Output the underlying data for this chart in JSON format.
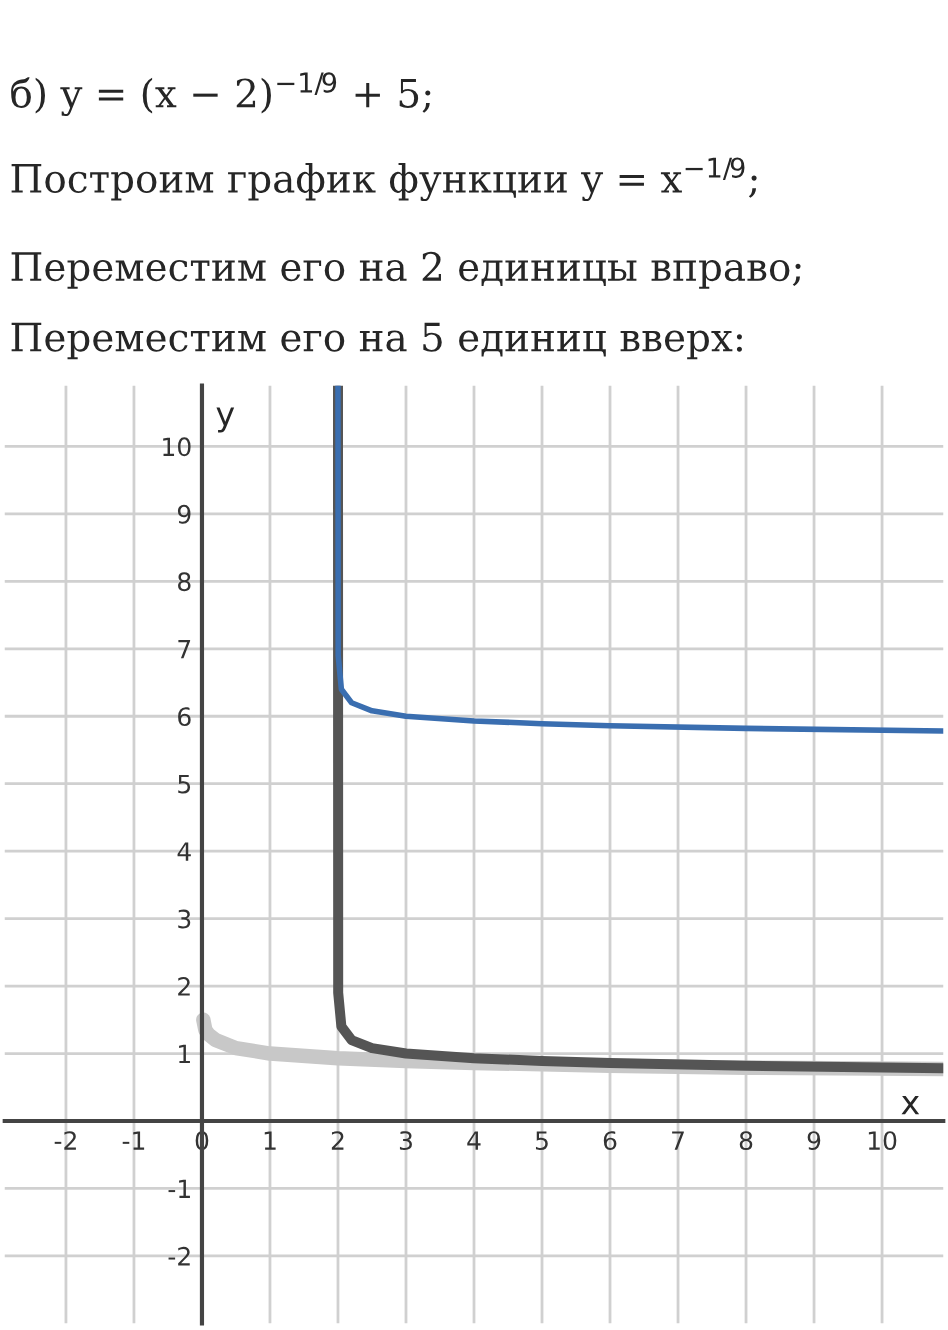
{
  "chart_data": {
    "type": "line",
    "title": "б) y = (x − 2)$^{−1/9}$ + 5;",
    "annotations": [
      "Построим график функции y = x$^{−1/9}$;",
      "Переместим его на 2 единицы вправо;",
      "Переместим его на 5 единиц вверх:"
    ],
    "xlabel": "x",
    "ylabel": "y",
    "series": [
      {
        "color": "#c8c8c8",
        "x": [
          0.02,
          0.05,
          0.1,
          0.2,
          0.5,
          1,
          2,
          3,
          4,
          6,
          8,
          10.9
        ],
        "values": [
          1.5,
          1.35,
          1.28,
          1.2,
          1.08,
          1.0,
          0.93,
          0.89,
          0.86,
          0.82,
          0.79,
          0.77
        ]
      },
      {
        "color": "#555555",
        "x": [
          2,
          2.003,
          2.05,
          2.2,
          2.5,
          3,
          4,
          5,
          6,
          8,
          10.9
        ],
        "values": [
          10.9,
          1.9,
          1.4,
          1.2,
          1.08,
          1.0,
          0.93,
          0.89,
          0.86,
          0.82,
          0.78
        ]
      },
      {
        "color": "#3a6eb0",
        "x": [
          2,
          2.003,
          2.05,
          2.2,
          2.5,
          3,
          4,
          5,
          6,
          8,
          10.9
        ],
        "values": [
          10.9,
          6.9,
          6.4,
          6.2,
          6.08,
          6.0,
          5.93,
          5.89,
          5.86,
          5.82,
          5.78
        ]
      }
    ],
    "xlim": [
      -2.9,
      10.9
    ],
    "ylim": [
      -3,
      10.9
    ],
    "xticks": [
      -2,
      -1,
      0,
      1,
      2,
      3,
      4,
      5,
      6,
      7,
      8,
      9,
      10
    ],
    "yticks": [
      -2,
      -1,
      {
        "value": 0,
        "label": null
      },
      1,
      2,
      3,
      4,
      5,
      6,
      7,
      8,
      9,
      10
    ],
    "grid": true,
    "marker": "none",
    "line_style": "solid"
  }
}
